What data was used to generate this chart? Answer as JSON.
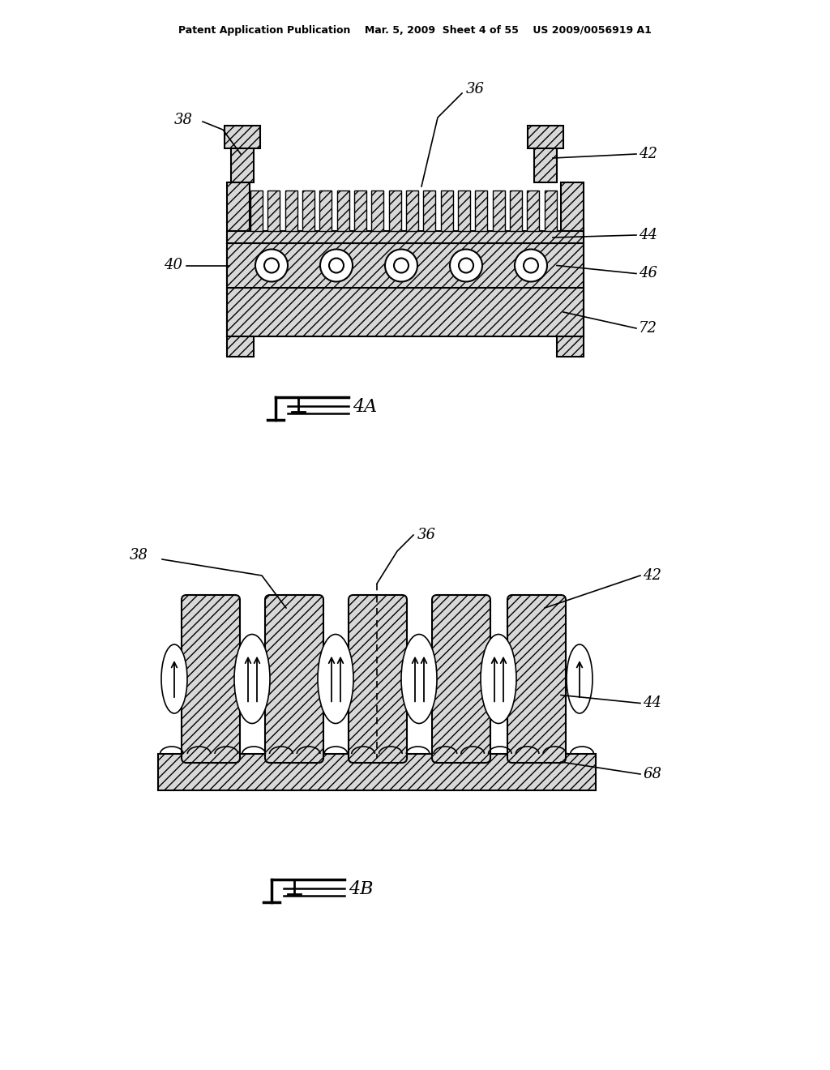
{
  "bg_color": "#ffffff",
  "line_color": "#000000",
  "header_text": "Patent Application Publication    Mar. 5, 2009  Sheet 4 of 55    US 2009/0056919 A1"
}
